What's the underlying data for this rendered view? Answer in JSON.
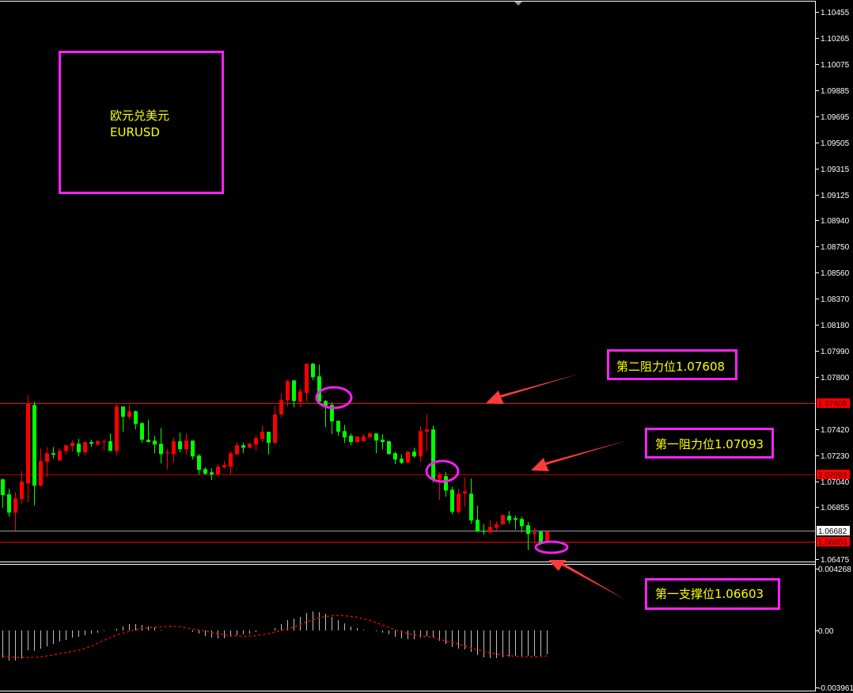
{
  "symbol_box": {
    "name_cn": "欧元兑美元",
    "symbol": "EURUSD"
  },
  "annotations": {
    "resistance_2": "第二阻力位1.07608",
    "resistance_1": "第一阻力位1.07093",
    "support_1": "第一支撑位1.06603"
  },
  "colors": {
    "up": "#ff0000",
    "down": "#00ff00",
    "annotation_box": "#ff22ff",
    "annotation_text": "#ffff00",
    "arrow": "#ff3b3b",
    "ellipse": "#ee22ee",
    "macd_hist": "#c0c0c0",
    "macd_signal": "#ff0000"
  },
  "chart_data": [
    {
      "type": "candlestick",
      "ylim": [
        1.06446,
        1.10541
      ],
      "y_ticks": [
        "1.10455",
        "1.10265",
        "1.10075",
        "1.09885",
        "1.09695",
        "1.09505",
        "1.09315",
        "1.09125",
        "1.08940",
        "1.08750",
        "1.08560",
        "1.08370",
        "1.08180",
        "1.07990",
        "1.07800",
        "1.07420",
        "1.07230",
        "1.07040",
        "1.06855",
        "1.06475"
      ],
      "levels": [
        {
          "price": 1.07608,
          "label": "1.07608",
          "color": "#ff0000"
        },
        {
          "price": 1.07093,
          "label": "1.07093",
          "color": "#b00000"
        },
        {
          "price": 1.06682,
          "label": "1.06682",
          "color": "#9aa0a6"
        },
        {
          "price": 1.06603,
          "label": "1.06603",
          "color": "#ff0000"
        }
      ],
      "candles_ohlc": [
        [
          1.07055,
          1.07061,
          1.06848,
          1.0694
        ],
        [
          1.06946,
          1.06986,
          1.06784,
          1.06813
        ],
        [
          1.06813,
          1.06963,
          1.06681,
          1.06917
        ],
        [
          1.06911,
          1.07118,
          1.06876,
          1.07038
        ],
        [
          1.07026,
          1.07666,
          1.06888,
          1.07608
        ],
        [
          1.07596,
          1.0762,
          1.06865,
          1.07009
        ],
        [
          1.07009,
          1.0728,
          1.07003,
          1.07188
        ],
        [
          1.07182,
          1.07291,
          1.07072,
          1.07245
        ],
        [
          1.07245,
          1.07291,
          1.07205,
          1.07234
        ],
        [
          1.07193,
          1.0728,
          1.07188,
          1.07262
        ],
        [
          1.07262,
          1.07303,
          1.07239,
          1.07303
        ],
        [
          1.07297,
          1.07337,
          1.07257,
          1.0732
        ],
        [
          1.07314,
          1.07349,
          1.07222,
          1.07251
        ],
        [
          1.07251,
          1.07326,
          1.07228,
          1.07326
        ],
        [
          1.07326,
          1.07343,
          1.07291,
          1.07314
        ],
        [
          1.07308,
          1.07343,
          1.07297,
          1.07332
        ],
        [
          1.07326,
          1.07343,
          1.07262,
          1.07332
        ],
        [
          1.07332,
          1.07389,
          1.07262,
          1.07262
        ],
        [
          1.07262,
          1.07602,
          1.07228,
          1.07585
        ],
        [
          1.07585,
          1.07585,
          1.07401,
          1.0751
        ],
        [
          1.0751,
          1.07596,
          1.07493,
          1.0755
        ],
        [
          1.0755,
          1.07556,
          1.07418,
          1.07458
        ],
        [
          1.07464,
          1.0747,
          1.0732,
          1.07343
        ],
        [
          1.07343,
          1.07487,
          1.07326,
          1.07326
        ],
        [
          1.07337,
          1.07372,
          1.07245,
          1.07308
        ],
        [
          1.07314,
          1.07429,
          1.0717,
          1.07239
        ],
        [
          1.07245,
          1.07274,
          1.0713,
          1.07251
        ],
        [
          1.07239,
          1.0736,
          1.07176,
          1.07332
        ],
        [
          1.07332,
          1.07395,
          1.07251,
          1.07274
        ],
        [
          1.07274,
          1.07389,
          1.07234,
          1.07337
        ],
        [
          1.07337,
          1.07337,
          1.07199,
          1.07222
        ],
        [
          1.07228,
          1.07239,
          1.0709,
          1.07124
        ],
        [
          1.0713,
          1.07142,
          1.0709,
          1.07095
        ],
        [
          1.07107,
          1.07136,
          1.07049,
          1.0709
        ],
        [
          1.0709,
          1.07165,
          1.0709,
          1.07147
        ],
        [
          1.07142,
          1.07188,
          1.07136,
          1.07159
        ],
        [
          1.07147,
          1.07257,
          1.0709,
          1.07245
        ],
        [
          1.07239,
          1.07326,
          1.07228,
          1.07303
        ],
        [
          1.07303,
          1.0732,
          1.07245,
          1.07285
        ],
        [
          1.07285,
          1.0732,
          1.0728,
          1.07314
        ],
        [
          1.07308,
          1.07378,
          1.07262,
          1.07355
        ],
        [
          1.07349,
          1.07447,
          1.07326,
          1.07401
        ],
        [
          1.07401,
          1.07401,
          1.07234,
          1.0732
        ],
        [
          1.0732,
          1.07591,
          1.07314,
          1.07527
        ],
        [
          1.07527,
          1.07683,
          1.07504,
          1.07631
        ],
        [
          1.07631,
          1.07781,
          1.07585,
          1.07769
        ],
        [
          1.07775,
          1.07775,
          1.07579,
          1.07625
        ],
        [
          1.0762,
          1.07717,
          1.07579,
          1.07694
        ],
        [
          1.07683,
          1.07896,
          1.0762,
          1.07896
        ],
        [
          1.07896,
          1.07902,
          1.07775,
          1.07798
        ],
        [
          1.07804,
          1.0789,
          1.07602,
          1.0762
        ],
        [
          1.07625,
          1.07631,
          1.07435,
          1.07591
        ],
        [
          1.07596,
          1.07614,
          1.07383,
          1.07476
        ],
        [
          1.07481,
          1.07481,
          1.07372,
          1.07401
        ],
        [
          1.07406,
          1.07452,
          1.0732,
          1.0736
        ],
        [
          1.07372,
          1.07389,
          1.07303,
          1.07326
        ],
        [
          1.07326,
          1.07366,
          1.0732,
          1.07366
        ],
        [
          1.07332,
          1.07383,
          1.07332,
          1.07366
        ],
        [
          1.0736,
          1.07401,
          1.0736,
          1.07389
        ],
        [
          1.07389,
          1.07389,
          1.07245,
          1.07337
        ],
        [
          1.07343,
          1.07383,
          1.07274,
          1.07326
        ],
        [
          1.07332,
          1.07337,
          1.07234,
          1.07239
        ],
        [
          1.07245,
          1.07257,
          1.07165,
          1.07199
        ],
        [
          1.07205,
          1.07239,
          1.07165,
          1.07176
        ],
        [
          1.07176,
          1.07262,
          1.0717,
          1.07257
        ],
        [
          1.07257,
          1.07285,
          1.07211,
          1.07222
        ],
        [
          1.07222,
          1.07441,
          1.07182,
          1.07406
        ],
        [
          1.07401,
          1.07527,
          1.07257,
          1.07418
        ],
        [
          1.07418,
          1.07447,
          1.07032,
          1.07055
        ],
        [
          1.07055,
          1.07107,
          1.06905,
          1.0709
        ],
        [
          1.07078,
          1.07107,
          1.06928,
          1.06974
        ],
        [
          1.0698,
          1.07003,
          1.06802,
          1.06819
        ],
        [
          1.06819,
          1.06986,
          1.06807,
          1.06951
        ],
        [
          1.06951,
          1.07067,
          1.06853,
          1.06968
        ],
        [
          1.06951,
          1.07061,
          1.06732,
          1.06756
        ],
        [
          1.06761,
          1.06865,
          1.06675,
          1.06675
        ],
        [
          1.06681,
          1.06732,
          1.06652,
          1.06675
        ],
        [
          1.06669,
          1.06761,
          1.06663,
          1.06709
        ],
        [
          1.06704,
          1.0675,
          1.06669,
          1.06727
        ],
        [
          1.06727,
          1.06796,
          1.06727,
          1.06796
        ],
        [
          1.0679,
          1.06825,
          1.06732,
          1.06756
        ],
        [
          1.06773,
          1.0679,
          1.06692,
          1.06761
        ],
        [
          1.06767,
          1.06784,
          1.06669,
          1.06715
        ],
        [
          1.06721,
          1.06744,
          1.06542,
          1.06658
        ],
        [
          1.06658,
          1.06704,
          1.06588,
          1.06669
        ],
        [
          1.06675,
          1.06675,
          1.06594,
          1.06594
        ],
        [
          1.06594,
          1.06681,
          1.06594,
          1.06675
        ]
      ]
    },
    {
      "type": "bar+line",
      "ylim": [
        -0.00422,
        0.00455
      ],
      "y_ticks": [
        "0.004268",
        "0.00",
        "-0.003961"
      ],
      "histogram": [
        -0.0019,
        -0.00208,
        -0.00208,
        -0.00195,
        -0.00137,
        -0.00142,
        -0.00126,
        -0.0011,
        -0.00093,
        -0.00077,
        -0.00066,
        -0.00049,
        -0.00044,
        -0.00033,
        -0.00022,
        -0.00016,
        -5e-05,
        -2e-05,
        0.00011,
        0.00027,
        0.00044,
        0.00044,
        0.00038,
        0.00027,
        0.00022,
        5e-05,
        2e-05,
        1e-05,
        0,
        0,
        -0.0001,
        -0.00022,
        -0.00038,
        -0.00049,
        -0.00055,
        -0.00055,
        -0.00044,
        -0.00033,
        -0.00027,
        -0.00022,
        -0.00011,
        0,
        2e-05,
        0.00016,
        0.00044,
        0.00071,
        0.00082,
        0.00093,
        0.0012,
        0.00131,
        0.00126,
        0.00115,
        0.00093,
        0.00071,
        0.00049,
        0.00027,
        0.00016,
        5e-05,
        0,
        -5e-05,
        -0.00016,
        -0.00027,
        -0.00044,
        -0.00055,
        -0.0006,
        -0.0006,
        -0.00049,
        -0.00038,
        -0.00049,
        -0.00071,
        -0.00093,
        -0.00115,
        -0.00126,
        -0.00131,
        -0.00148,
        -0.0017,
        -0.00186,
        -0.00192,
        -0.00192,
        -0.00186,
        -0.00181,
        -0.00175,
        -0.00175,
        -0.00175,
        -0.00175,
        -0.00175,
        -0.00164
      ],
      "signal_points": [
        [
          0,
          -0.00177
        ],
        [
          2,
          -0.00188
        ],
        [
          4,
          -0.00188
        ],
        [
          6,
          -0.00183
        ],
        [
          8,
          -0.0017
        ],
        [
          10,
          -0.00153
        ],
        [
          12,
          -0.00137
        ],
        [
          14,
          -0.0011
        ],
        [
          16,
          -0.00068
        ],
        [
          18,
          -0.00031
        ],
        [
          20,
          -7e-05
        ],
        [
          22,
          0.00015
        ],
        [
          24,
          0.00022
        ],
        [
          26,
          0.00029
        ],
        [
          28,
          0.00026
        ],
        [
          30,
          9e-05
        ],
        [
          32,
          -4e-05
        ],
        [
          34,
          -0.00022
        ],
        [
          36,
          -0.00037
        ],
        [
          38,
          -0.0004
        ],
        [
          40,
          -0.00037
        ],
        [
          42,
          -0.00022
        ],
        [
          44,
          0
        ],
        [
          46,
          0.00022
        ],
        [
          48,
          0.0006
        ],
        [
          50,
          0.00088
        ],
        [
          52,
          0.00102
        ],
        [
          54,
          0.00102
        ],
        [
          56,
          0.00091
        ],
        [
          58,
          0.00069
        ],
        [
          60,
          0.00037
        ],
        [
          62,
          4e-05
        ],
        [
          64,
          -0.00022
        ],
        [
          66,
          -0.00037
        ],
        [
          68,
          -0.00049
        ],
        [
          70,
          -0.00073
        ],
        [
          72,
          -0.00095
        ],
        [
          74,
          -0.00122
        ],
        [
          76,
          -0.00146
        ],
        [
          78,
          -0.00164
        ],
        [
          80,
          -0.00175
        ],
        [
          82,
          -0.00182
        ],
        [
          84,
          -0.00182
        ],
        [
          86,
          -0.00177
        ]
      ]
    }
  ]
}
